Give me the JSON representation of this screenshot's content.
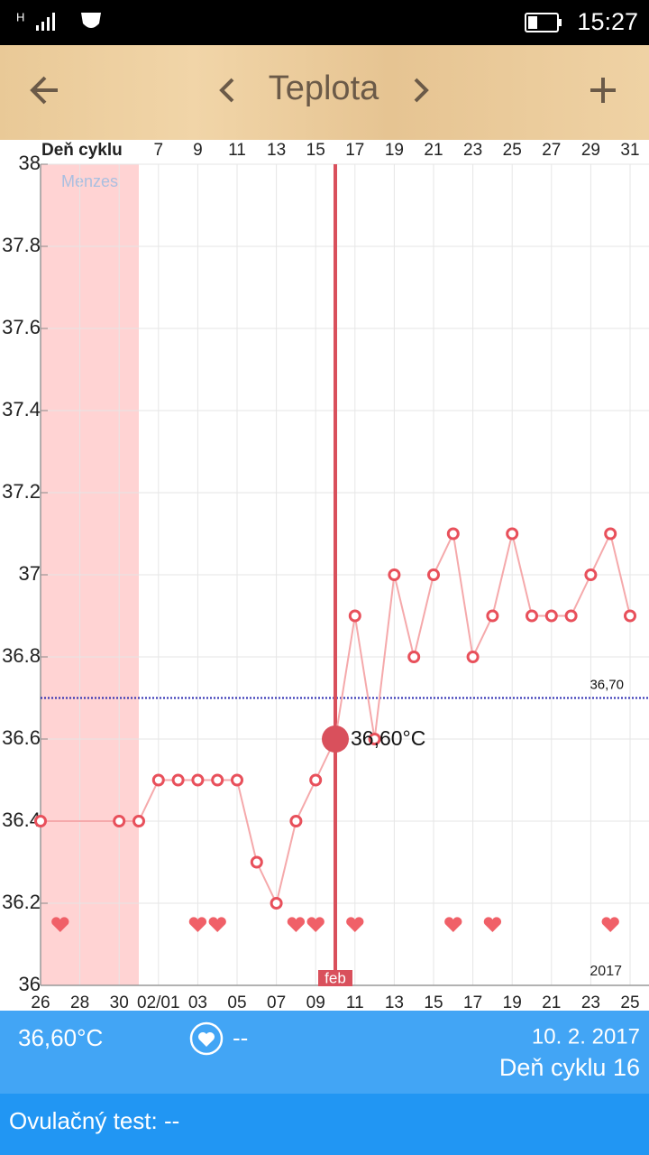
{
  "status_bar": {
    "network": "H",
    "time": "15:27"
  },
  "header": {
    "title": "Teplota"
  },
  "chart_data": {
    "type": "line",
    "xlabel": "Deň cyklu",
    "x": [
      1,
      5,
      6,
      7,
      8,
      9,
      10,
      11,
      12,
      13,
      14,
      15,
      16,
      17,
      18,
      19,
      20,
      21,
      22,
      23,
      24,
      25,
      26,
      27,
      28,
      29,
      30,
      31
    ],
    "values": [
      36.4,
      36.4,
      36.4,
      36.5,
      36.5,
      36.5,
      36.5,
      36.5,
      36.3,
      36.2,
      36.4,
      36.5,
      36.6,
      36.9,
      36.6,
      37,
      36.8,
      37,
      37.1,
      36.8,
      36.9,
      37.1,
      36.9,
      36.9,
      36.9,
      37,
      37.1,
      36.9
    ],
    "color": "#e8505b",
    "line_color": "#f5a9ab",
    "xlim": [
      1,
      31
    ],
    "xticks": [
      7,
      9,
      11,
      13,
      15,
      17,
      19,
      21,
      23,
      25,
      27,
      29,
      31
    ],
    "date_ticks": [
      {
        "value": 1,
        "label": "26"
      },
      {
        "value": 3,
        "label": "28"
      },
      {
        "value": 5,
        "label": "30"
      },
      {
        "value": 7,
        "label": "02/01"
      },
      {
        "value": 9,
        "label": "03"
      },
      {
        "value": 11,
        "label": "05"
      },
      {
        "value": 13,
        "label": "07"
      },
      {
        "value": 15,
        "label": "09"
      },
      {
        "value": 17,
        "label": "11"
      },
      {
        "value": 19,
        "label": "13"
      },
      {
        "value": 21,
        "label": "15"
      },
      {
        "value": 23,
        "label": "17"
      },
      {
        "value": 25,
        "label": "19"
      },
      {
        "value": 27,
        "label": "21"
      },
      {
        "value": 29,
        "label": "23"
      },
      {
        "value": 31,
        "label": "25"
      }
    ],
    "ylim": [
      36,
      38
    ],
    "yticks": [
      36,
      36.2,
      36.4,
      36.6,
      36.8,
      37,
      37.2,
      37.4,
      37.6,
      37.8,
      38
    ],
    "grid": true,
    "menses": {
      "label": "Menzes",
      "start": 1,
      "end": 6,
      "color": "#ffd3d3"
    },
    "reference_line": {
      "value": 36.7,
      "label": "36,70",
      "color": "#2a2ab0"
    },
    "hearts": [
      2,
      9,
      10,
      14,
      15,
      17,
      22,
      24,
      30
    ],
    "heart_color": "#f06068",
    "selected": {
      "x": 16,
      "value": 36.6,
      "label": "36,60°C",
      "color": "#d9505c"
    },
    "annotations": {
      "month": "feb",
      "year": "2017"
    }
  },
  "footer": {
    "temperature": "36,60°C",
    "intercourse": "--",
    "date": "10. 2. 2017",
    "cycle_day": "Deň cyklu 16",
    "ovulation_test": "Ovulačný test: --"
  }
}
